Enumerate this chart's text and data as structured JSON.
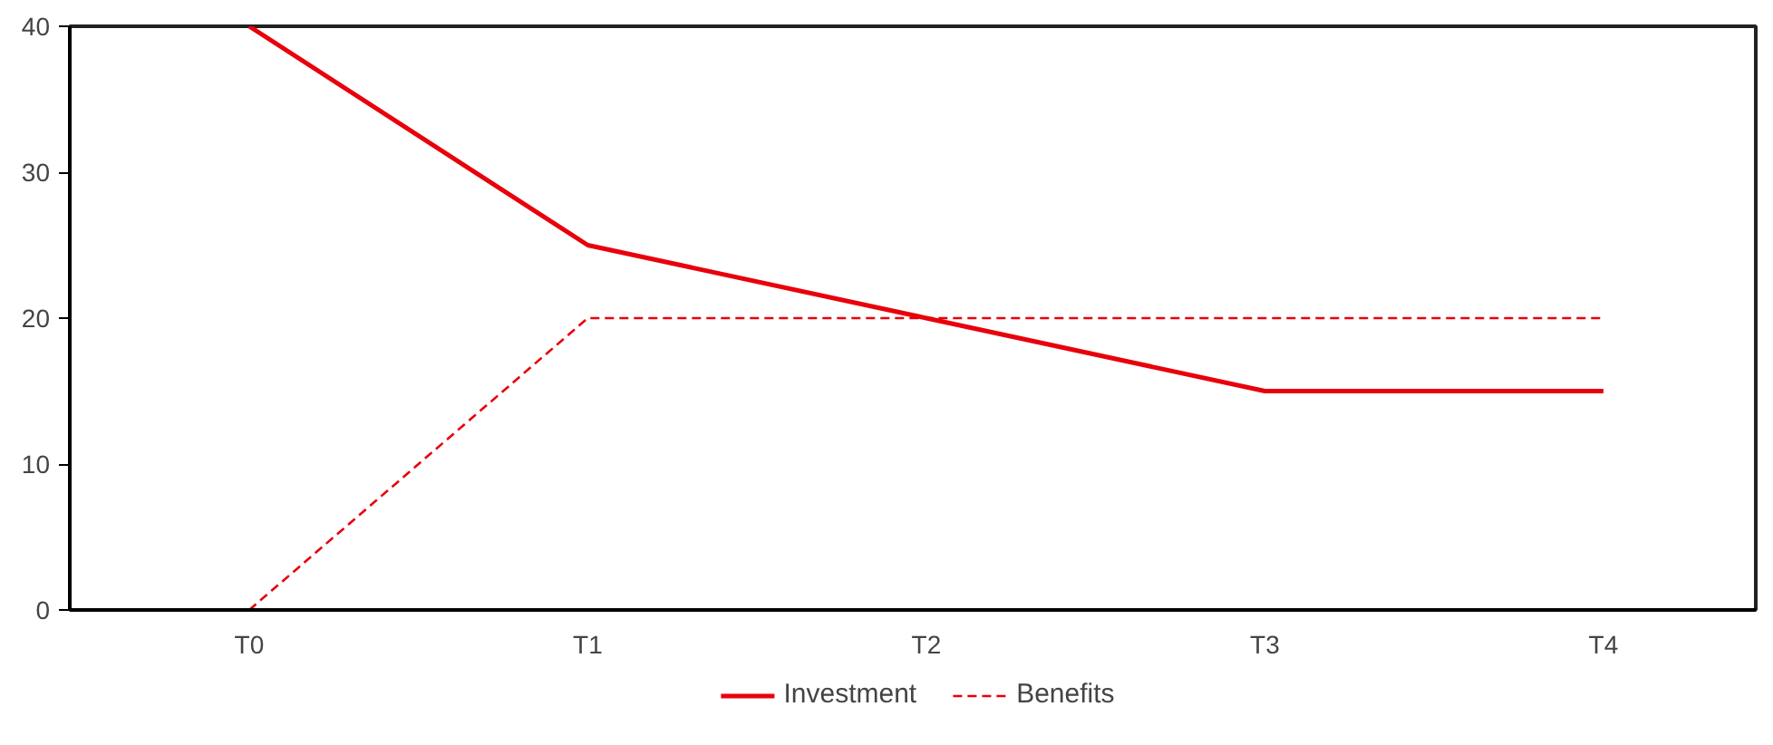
{
  "chart_data": {
    "type": "line",
    "categories": [
      "T0",
      "T1",
      "T2",
      "T3",
      "T4"
    ],
    "series": [
      {
        "name": "Investment",
        "color": "#e8000b",
        "values": [
          40,
          25,
          20,
          15,
          15
        ],
        "line_style": "solid"
      },
      {
        "name": "Benefits",
        "color": "#e8000b",
        "values": [
          0,
          20,
          20,
          20,
          20
        ],
        "line_style": "dashed"
      }
    ],
    "ylim": [
      0,
      40
    ],
    "yticks": [
      0,
      10,
      20,
      30,
      40
    ],
    "grid": false,
    "legend": "bottom",
    "marker": "none"
  }
}
